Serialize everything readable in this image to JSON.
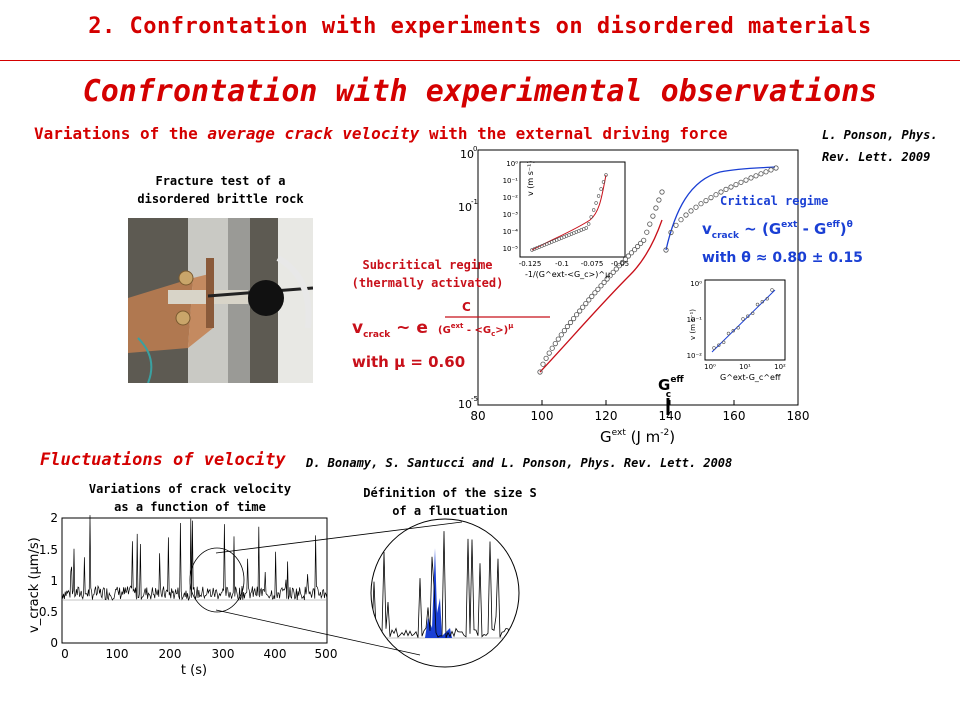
{
  "header": {
    "section_title": "2. Confrontation with experiments on disordered materials",
    "slide_title": "Confrontation with experimental observations",
    "subtitle_prefix": "Variations of the ",
    "subtitle_emph": "average crack velocity",
    "subtitle_suffix": " with the external driving force"
  },
  "reference_1": {
    "line1": "L. Ponson, Phys.",
    "line2": "Rev. Lett. 2009"
  },
  "photo_caption": {
    "line1": "Fracture test of a",
    "line2": "disordered brittle rock"
  },
  "main_plot": {
    "y_ticks": [
      "10",
      "10",
      "10"
    ],
    "y_exp": [
      "0",
      "-1",
      "-5"
    ],
    "x_ticks": [
      "80",
      "100",
      "120",
      "140",
      "160",
      "180"
    ],
    "xlabel_base": "G",
    "xlabel_sup": "ext",
    "xlabel_unit": " (J m",
    "xlabel_unit_sup": "-2",
    "xlabel_close": ")",
    "gc_label": "G",
    "gc_sup": "eff",
    "gc_sub": "c",
    "critical_label": "Critical regime",
    "critical_formula": "v_crack ~ (G^ext - G_c^eff)^θ",
    "critical_theta": "with θ ≈ 0.80 ± 0.15",
    "subcritical_label_1": "Subcritical regime",
    "subcritical_label_2": "(thermally activated)",
    "subcritical_mu": "with μ = 0.60",
    "inset1": {
      "y_ticks": [
        "10⁰",
        "10⁻¹",
        "10⁻²",
        "10⁻³",
        "10⁻⁴",
        "10⁻⁵"
      ],
      "x_ticks": [
        "-0.125",
        "-0.1",
        "-0.075",
        "-0.05"
      ],
      "ylabel": "v (m s⁻¹)",
      "xlabel": "-1/(G^ext-<G_c>)^μ"
    },
    "inset2": {
      "y_ticks": [
        "10⁰",
        "10⁻¹",
        "10⁻²"
      ],
      "x_ticks": [
        "10⁰",
        "10¹",
        "10²"
      ],
      "ylabel": "v (m s⁻¹)",
      "xlabel": "G^ext-G_c^eff"
    }
  },
  "fluctuations": {
    "title": "Fluctuations of velocity",
    "reference": "D. Bonamy, S. Santucci and L. Ponson, Phys. Rev. Lett. 2008",
    "time_caption_1": "Variations of crack velocity",
    "time_caption_2": "as a function of time",
    "size_caption_1": "Définition of the size S",
    "size_caption_2": "of a fluctuation",
    "time_plot": {
      "ylabel": "v_crack (μm/s)",
      "xlabel": "t (s)",
      "y_ticks": [
        "2",
        "1.5",
        "1",
        "0.5",
        "0"
      ],
      "x_ticks": [
        "0",
        "100",
        "200",
        "300",
        "400",
        "500"
      ]
    }
  },
  "colors": {
    "accent_red": "#d40000",
    "critical_blue": "#1a3fd4",
    "fit_red": "#c8101a"
  }
}
